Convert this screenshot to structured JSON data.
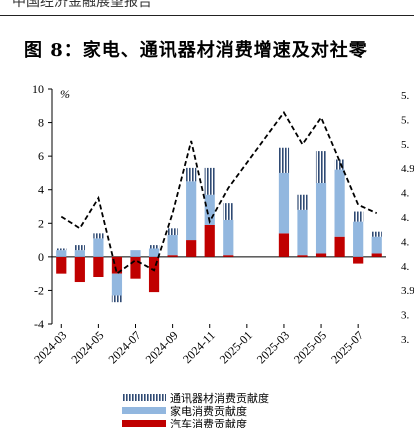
{
  "header": {
    "text": "中国经济金融展望报告"
  },
  "figure": {
    "title": "图 8：家电、通讯器材消费增速及对社零"
  },
  "chart_data": {
    "type": "bar",
    "y_unit_label": "%",
    "ylim": [
      -4,
      10
    ],
    "yticks": [
      -4,
      -2,
      0,
      2,
      4,
      6,
      8,
      10
    ],
    "right_ticks": [
      "5.",
      "5.",
      "5.",
      "4.9",
      "4.",
      "4.",
      "4.",
      "4.",
      "3.9",
      "3.",
      "3."
    ],
    "x": [
      "2024-03",
      "2024-04",
      "2024-05",
      "2024-06",
      "2024-07",
      "2024-08",
      "2024-09",
      "2024-10",
      "2024-11",
      "2024-12",
      "2025-01",
      "2025-02",
      "2025-03",
      "2025-04",
      "2025-05",
      "2025-06",
      "2025-07",
      "2025-08"
    ],
    "x_tick_labels": [
      "2024-03",
      "2024-05",
      "2024-07",
      "2024-09",
      "2024-11",
      "2025-01",
      "2025-03",
      "2025-05",
      "2025-07"
    ],
    "series": [
      {
        "name": "通讯器材消费贡献度",
        "values": [
          0.1,
          0.3,
          0.3,
          -0.4,
          0.0,
          0.2,
          0.4,
          0.8,
          1.6,
          1.0,
          null,
          null,
          1.5,
          0.9,
          1.9,
          0.6,
          0.6,
          0.3
        ]
      },
      {
        "name": "家电消费贡献度",
        "values": [
          0.4,
          0.4,
          1.1,
          -1.3,
          0.4,
          0.5,
          1.2,
          3.5,
          1.8,
          2.1,
          null,
          null,
          3.6,
          2.7,
          4.2,
          4.0,
          2.1,
          1.0
        ]
      },
      {
        "name": "汽车消费贡献度",
        "values": [
          -1.0,
          -1.5,
          -1.2,
          -1.0,
          -1.3,
          -2.1,
          0.1,
          1.0,
          1.9,
          0.1,
          null,
          null,
          1.4,
          0.1,
          0.2,
          1.2,
          -0.4,
          0.2
        ]
      }
    ],
    "line_y_approx_left_axis": [
      2.4,
      1.7,
      3.5,
      -1.0,
      -0.2,
      -0.8,
      2.6,
      6.9,
      2.1,
      4.1,
      null,
      null,
      8.6,
      6.7,
      8.3,
      5.7,
      3.1,
      2.6
    ],
    "line_x_offsets": [
      0,
      0,
      0,
      0,
      0,
      0,
      0,
      0,
      0,
      0,
      0,
      0,
      0,
      0,
      0,
      0,
      0,
      0
    ],
    "colors": {
      "telecom": "#2f4a73",
      "appliance": "#92b7df",
      "auto": "#c00000",
      "line": "#000000"
    }
  }
}
